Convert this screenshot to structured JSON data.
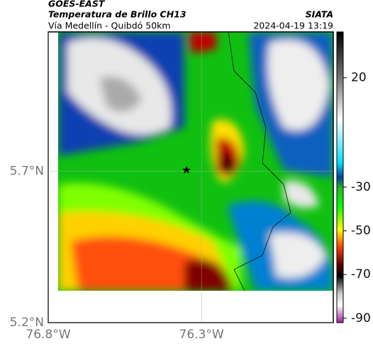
{
  "header": {
    "source": "GOES-EAST",
    "title": "Temperatura de Brillo CH13",
    "subtitle": "Vía Medellín - Quibdó 50km",
    "organization": "SIATA",
    "datetime": "2024-04-19 13:19"
  },
  "map": {
    "xlim": [
      -76.8,
      -75.87
    ],
    "ylim": [
      5.2,
      6.16
    ],
    "xticks": [
      {
        "value": -76.8,
        "label": "76.8°W"
      },
      {
        "value": -76.3,
        "label": "76.3°W"
      }
    ],
    "yticks": [
      {
        "value": 5.7,
        "label": "5.7°N"
      },
      {
        "value": 5.2,
        "label": "5.2°N"
      }
    ]
  },
  "colorbar": {
    "lim": [
      -92,
      41
    ],
    "ticks": [
      20,
      -30,
      -50,
      -70,
      -90
    ]
  }
}
